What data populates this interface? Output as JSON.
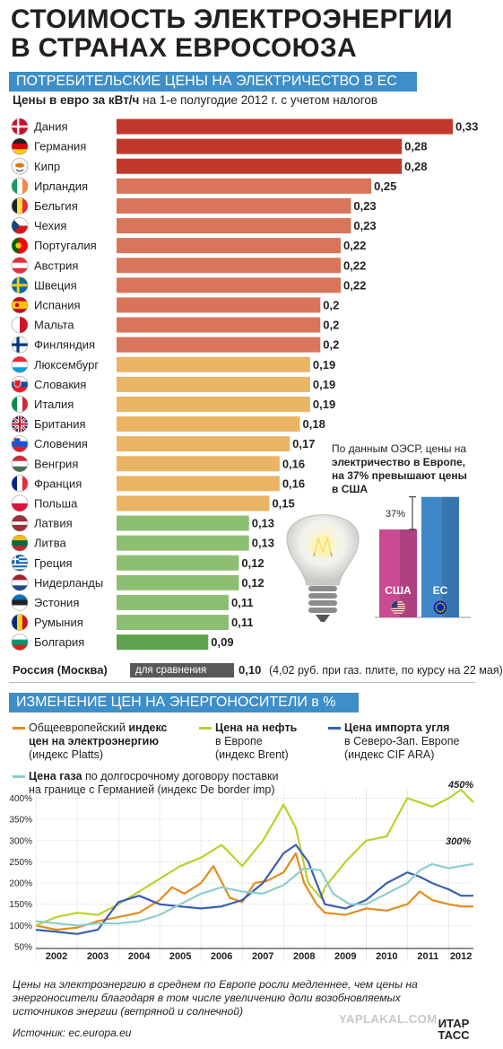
{
  "header": {
    "title_line1": "СТОИМОСТЬ ЭЛЕКТРОЭНЕРГИИ",
    "title_line2": "В СТРАНАХ ЕВРОСОЮЗА"
  },
  "section1": {
    "band": "ПОТРЕБИТЕЛЬСКИЕ ЦЕНЫ НА ЭЛЕКТРИЧЕСТВО В ЕС",
    "subtitle_bold": "Цены в евро за кВт/ч",
    "subtitle_rest": " на 1-е полугодие 2012 г. с учетом налогов"
  },
  "colors": {
    "dark_red": "#c0392b",
    "salmon": "#d9755a",
    "gold": "#e9b464",
    "green": "#8dbf72",
    "dark_green": "#5ea24d",
    "band_blue": "#3d8ec9",
    "usa_bar": "#c94b92",
    "eu_bar": "#3f86c8",
    "line_orange": "#e48b1e",
    "line_lime": "#bcd02b",
    "line_blue": "#3b5fae",
    "line_teal": "#8fcdd0"
  },
  "chart_data": [
    {
      "type": "bar",
      "title": "ПОТРЕБИТЕЛЬСКИЕ ЦЕНЫ НА ЭЛЕКТРИЧЕСТВО В ЕС",
      "subtitle": "Цены в евро за кВт/ч на 1-е полугодие 2012 г. с учетом налогов",
      "orientation": "horizontal",
      "categories": [
        "Дания",
        "Германия",
        "Кипр",
        "Ирландия",
        "Бельгия",
        "Чехия",
        "Португалия",
        "Австрия",
        "Швеция",
        "Испания",
        "Мальта",
        "Финляндия",
        "Люксембург",
        "Словакия",
        "Италия",
        "Британия",
        "Словения",
        "Венгрия",
        "Франция",
        "Польша",
        "Латвия",
        "Литва",
        "Греция",
        "Нидерланды",
        "Эстония",
        "Румыния",
        "Болгария"
      ],
      "values": [
        0.33,
        0.28,
        0.28,
        0.25,
        0.23,
        0.23,
        0.22,
        0.22,
        0.22,
        0.2,
        0.2,
        0.2,
        0.19,
        0.19,
        0.19,
        0.18,
        0.17,
        0.16,
        0.16,
        0.15,
        0.13,
        0.13,
        0.12,
        0.12,
        0.11,
        0.11,
        0.09
      ],
      "value_labels": [
        "0,33",
        "0,28",
        "0,28",
        "0,25",
        "0,23",
        "0,23",
        "0,22",
        "0,22",
        "0,22",
        "0,2",
        "0,2",
        "0,2",
        "0,19",
        "0,19",
        "0,19",
        "0,18",
        "0,17",
        "0,16",
        "0,16",
        "0,15",
        "0,13",
        "0,13",
        "0,12",
        "0,12",
        "0,11",
        "0,11",
        "0,09"
      ],
      "xlim": [
        0,
        0.33
      ]
    },
    {
      "type": "bar",
      "categories": [
        "США",
        "ЕС"
      ],
      "values": [
        100,
        137
      ],
      "annotation": "37%"
    },
    {
      "type": "line",
      "title": "ИЗМЕНЕНИЕ ЦЕН НА ЭНЕРГОНОСИТЕЛИ в %",
      "x_ticks": [
        "2002",
        "2003",
        "2004",
        "2005",
        "2006",
        "2007",
        "2008",
        "2009",
        "2010",
        "2011",
        "2012"
      ],
      "y_ticks": [
        "400%",
        "350%",
        "300%",
        "250%",
        "200%",
        "150%",
        "100%",
        "50%"
      ],
      "xlim": [
        2002,
        2012.6
      ],
      "ylim": [
        50,
        420
      ],
      "annotations": [
        "450%",
        "300%"
      ],
      "series": [
        {
          "name": "Общеевропейский индекс цен на электроэнергию (индекс Platts)",
          "color_key": "line_orange",
          "x": [
            2002,
            2002.5,
            2003,
            2003.5,
            2004,
            2004.5,
            2005,
            2005.3,
            2005.6,
            2006,
            2006.3,
            2006.7,
            2007,
            2007.3,
            2007.6,
            2008,
            2008.3,
            2008.5,
            2008.8,
            2009,
            2009.5,
            2010,
            2010.5,
            2011,
            2011.3,
            2011.6,
            2012,
            2012.3,
            2012.6
          ],
          "y": [
            100,
            90,
            95,
            110,
            120,
            130,
            160,
            190,
            175,
            200,
            240,
            165,
            155,
            200,
            205,
            225,
            270,
            200,
            150,
            130,
            125,
            140,
            135,
            150,
            180,
            160,
            150,
            145,
            145
          ]
        },
        {
          "name": "Цена на нефть в Европе (индекс Brent)",
          "color_key": "line_lime",
          "x": [
            2002,
            2002.5,
            2003,
            2003.5,
            2004,
            2004.5,
            2005,
            2005.5,
            2006,
            2006.5,
            2007,
            2007.5,
            2007.8,
            2008,
            2008.3,
            2008.6,
            2008.9,
            2009,
            2009.5,
            2010,
            2010.5,
            2011,
            2011.3,
            2011.6,
            2012,
            2012.3,
            2012.6
          ],
          "y": [
            100,
            120,
            130,
            125,
            150,
            180,
            210,
            240,
            260,
            290,
            240,
            300,
            350,
            385,
            330,
            200,
            165,
            190,
            250,
            300,
            310,
            400,
            390,
            380,
            400,
            420,
            390
          ]
        },
        {
          "name": "Цена импорта угля в Северо-Зап. Европе (индекс CIF ARA)",
          "color_key": "line_blue",
          "x": [
            2002,
            2002.5,
            2003,
            2003.5,
            2004,
            2004.5,
            2005,
            2005.5,
            2006,
            2006.5,
            2007,
            2007.5,
            2008,
            2008.3,
            2008.6,
            2008.9,
            2009,
            2009.5,
            2010,
            2010.5,
            2011,
            2011.3,
            2011.6,
            2012,
            2012.3,
            2012.6
          ],
          "y": [
            90,
            85,
            80,
            90,
            155,
            170,
            150,
            145,
            140,
            145,
            160,
            200,
            270,
            290,
            250,
            175,
            150,
            140,
            160,
            200,
            225,
            215,
            200,
            185,
            170,
            170
          ]
        },
        {
          "name": "Цена газа по долгосрочному договору поставки на границе с Германией (индекс De border imp)",
          "color_key": "line_teal",
          "x": [
            2002,
            2002.5,
            2003,
            2003.5,
            2004,
            2004.5,
            2005,
            2005.5,
            2006,
            2006.5,
            2007,
            2007.5,
            2008,
            2008.5,
            2008.9,
            2009.2,
            2009.6,
            2010,
            2010.5,
            2011,
            2011.3,
            2011.6,
            2012,
            2012.3,
            2012.6
          ],
          "y": [
            110,
            105,
            100,
            105,
            105,
            110,
            125,
            150,
            175,
            190,
            180,
            175,
            195,
            235,
            230,
            175,
            150,
            150,
            175,
            200,
            230,
            245,
            235,
            240,
            245
          ]
        }
      ]
    }
  ],
  "flags": [
    "DK",
    "DE",
    "CY",
    "IE",
    "BE",
    "CZ",
    "PT",
    "AT",
    "SE",
    "ES",
    "MT",
    "FI",
    "LU",
    "SK",
    "IT",
    "GB",
    "SI",
    "HU",
    "FR",
    "PL",
    "LV",
    "LT",
    "GR",
    "NL",
    "EE",
    "RO",
    "BG"
  ],
  "comparison": {
    "country": "Россия (Москва)",
    "pill": "для сравнения",
    "value": "0,10",
    "note": "(4,02 руб. при газ. плите, по курсу на 22 мая)"
  },
  "oecd": {
    "text1": "По данным ОЭСР, цены на",
    "text2_bold": "электричество в Европе,",
    "text3_bold": "на 37% превышают цены",
    "text4_bold": "в США",
    "pct": "37%",
    "usa": "США",
    "eu": "ЕС"
  },
  "section2": {
    "band": "ИЗМЕНЕНИЕ ЦЕН НА ЭНЕРГОНОСИТЕЛИ в %",
    "legend": [
      {
        "l1a": "Общеевропейский ",
        "l1b": "индекс",
        "l2": "цен на электроэнергию",
        "l3": "(индекс Platts)"
      },
      {
        "l1": "Цена на нефть",
        "l2": "в Европе",
        "l3": "(индекс Brent)"
      },
      {
        "l1": "Цена импорта угля",
        "l2": "в Северо-Зап. Европе",
        "l3": "(индекс CIF ARA)"
      },
      {
        "l1a": "Цена газа",
        "l1b": " по долгосрочному договору поставки",
        "l2": "на границе с Германией (индекс De border imp)"
      }
    ]
  },
  "footer": {
    "line1": "Цены на электроэнергию в среднем по Европе росли медленнее, чем цены на",
    "line2": "энергоносители благодаря в том числе увеличению доли возобновляемых",
    "line3": "источников энергии (ветряной и солнечной)",
    "source": "Источник: ec.europa.eu",
    "agency1": "ИТАР",
    "agency2": "ТАСС",
    "watermark": "YAPLAKAL.COM"
  }
}
